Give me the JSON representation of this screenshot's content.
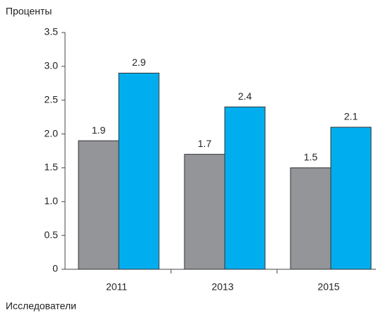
{
  "chart_data": {
    "type": "bar",
    "ylabel": "Проценты",
    "xlabel": "Исследователи",
    "categories": [
      "2011",
      "2013",
      "2015"
    ],
    "series": [
      {
        "color": "#939598",
        "values": [
          1.9,
          1.7,
          1.5
        ]
      },
      {
        "color": "#00aeef",
        "values": [
          2.9,
          2.4,
          2.1
        ]
      }
    ],
    "ylim": [
      0,
      3.5
    ],
    "yticks": [
      0,
      0.5,
      {
        "value": 1,
        "label": "1.0"
      },
      1.5,
      {
        "value": 2,
        "label": "2.0"
      },
      2.5,
      {
        "value": 3,
        "label": "3.0"
      },
      3.5
    ]
  }
}
